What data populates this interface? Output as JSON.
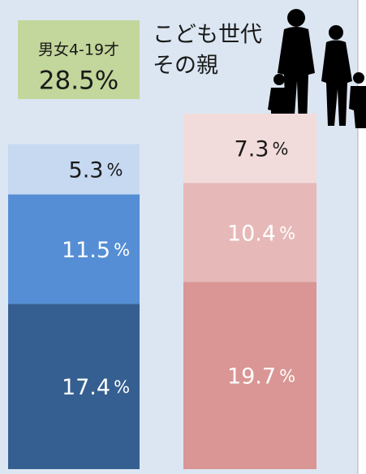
{
  "chart_data": {
    "type": "stacked-bar",
    "value_unit": "%",
    "bars": [
      {
        "label_lines": [
          "男女4-19才",
          "28.5%"
        ],
        "label_box_color": "#c3d69b",
        "values": [
          17.4,
          11.5,
          5.3
        ],
        "colors": [
          "#355f91",
          "#558ed5",
          "#c6d9f1"
        ],
        "label_colors": [
          "#ffffff",
          "#ffffff",
          "#1a1a1a"
        ]
      },
      {
        "label_lines": [
          "こども世代",
          "その親"
        ],
        "values": [
          19.7,
          10.4,
          7.3
        ],
        "colors": [
          "#d99694",
          "#e6b9b8",
          "#f2dcdb"
        ],
        "label_colors": [
          "#ffffff",
          "#ffffff",
          "#1a1a1a"
        ]
      }
    ]
  }
}
